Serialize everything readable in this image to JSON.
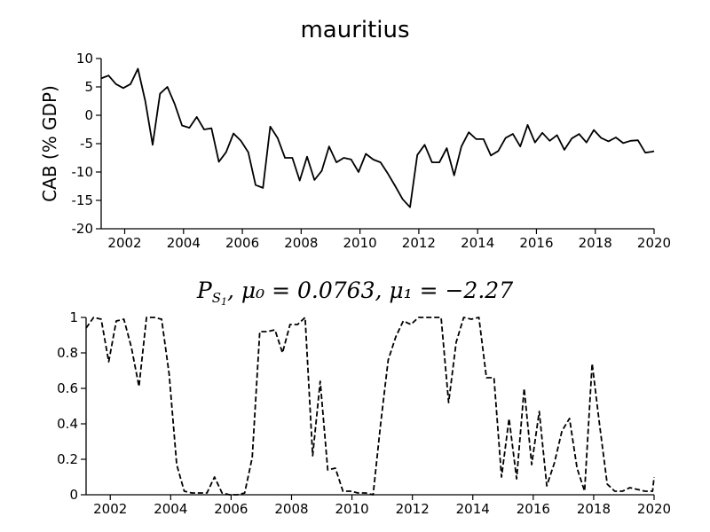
{
  "chart_data": [
    {
      "type": "line",
      "title": "mauritius",
      "ylabel": "CAB (% GDP)",
      "xlabel": "",
      "xlim": [
        2001.2,
        2020.0
      ],
      "ylim": [
        -20,
        10
      ],
      "xticks": [
        2002,
        2004,
        2006,
        2008,
        2010,
        2012,
        2014,
        2016,
        2018,
        2020
      ],
      "yticks": [
        -20,
        -15,
        -10,
        -5,
        0,
        5,
        10
      ],
      "line_style": "solid",
      "line_color": "#000000",
      "grid": false,
      "series": [
        {
          "x": [
            2001.2,
            2001.45,
            2001.7,
            2001.95,
            2002.2,
            2002.45,
            2002.7,
            2002.95,
            2003.2,
            2003.45,
            2003.7,
            2003.95,
            2004.2,
            2004.45,
            2004.7,
            2004.95,
            2005.2,
            2005.45,
            2005.7,
            2005.95,
            2006.2,
            2006.45,
            2006.7,
            2006.95,
            2007.2,
            2007.45,
            2007.7,
            2007.95,
            2008.2,
            2008.45,
            2008.7,
            2008.95,
            2009.2,
            2009.45,
            2009.7,
            2009.95,
            2010.2,
            2010.45,
            2010.7,
            2010.95,
            2011.2,
            2011.45,
            2011.7,
            2011.95,
            2012.2,
            2012.45,
            2012.7,
            2012.95,
            2013.2,
            2013.45,
            2013.7,
            2013.95,
            2014.2,
            2014.45,
            2014.7,
            2014.95,
            2015.2,
            2015.45,
            2015.7,
            2015.95,
            2016.2,
            2016.45,
            2016.7,
            2016.95,
            2017.2,
            2017.45,
            2017.7,
            2017.95,
            2018.2,
            2018.45,
            2018.7,
            2018.95,
            2019.2,
            2019.45,
            2019.7,
            2019.95,
            2020.0
          ],
          "values": [
            6.5,
            7.0,
            5.5,
            4.8,
            5.5,
            8.2,
            2.5,
            -5.2,
            3.8,
            5.0,
            2.0,
            -1.8,
            -2.2,
            -0.3,
            -2.5,
            -2.3,
            -8.2,
            -6.5,
            -3.2,
            -4.5,
            -6.5,
            -12.3,
            -12.8,
            -2.0,
            -4.0,
            -7.5,
            -7.5,
            -11.5,
            -7.3,
            -11.4,
            -9.8,
            -5.5,
            -8.3,
            -7.5,
            -7.8,
            -10.0,
            -6.8,
            -7.8,
            -8.3,
            -10.3,
            -12.5,
            -14.8,
            -16.2,
            -7.0,
            -5.2,
            -8.3,
            -8.3,
            -5.8,
            -10.6,
            -5.5,
            -3.0,
            -4.2,
            -4.2,
            -7.1,
            -6.3,
            -4.0,
            -3.3,
            -5.5,
            -1.7,
            -4.8,
            -3.1,
            -4.5,
            -3.5,
            -6.1,
            -4.1,
            -3.3,
            -4.8,
            -2.6,
            -4.0,
            -4.6,
            -3.9,
            -4.9,
            -4.5,
            -4.4,
            -6.6,
            -6.4,
            -6.3
          ]
        }
      ]
    },
    {
      "type": "line",
      "title_parts": {
        "main": "P",
        "sub": "S",
        "subsub": "1",
        "rest": ", μ₀ = 0.0763, μ₁ = −2.27"
      },
      "ylabel": "",
      "xlabel": "",
      "xlim": [
        2001.2,
        2020.0
      ],
      "ylim": [
        0,
        1
      ],
      "xticks": [
        2002,
        2004,
        2006,
        2008,
        2010,
        2012,
        2014,
        2016,
        2018,
        2020
      ],
      "yticks": [
        0,
        0.2,
        0.4,
        0.6,
        0.8,
        1
      ],
      "ytick_labels": [
        "0",
        "0.2",
        "0.4",
        "0.6",
        "0.8",
        "1"
      ],
      "line_style": "dashed",
      "line_color": "#000000",
      "grid": false,
      "series": [
        {
          "x": [
            2001.2,
            2001.45,
            2001.7,
            2001.95,
            2002.2,
            2002.45,
            2002.7,
            2002.95,
            2003.2,
            2003.45,
            2003.7,
            2003.95,
            2004.2,
            2004.45,
            2004.7,
            2004.95,
            2005.2,
            2005.45,
            2005.7,
            2005.95,
            2006.2,
            2006.45,
            2006.7,
            2006.95,
            2007.2,
            2007.45,
            2007.7,
            2007.95,
            2008.2,
            2008.45,
            2008.7,
            2008.95,
            2009.2,
            2009.45,
            2009.7,
            2009.95,
            2010.2,
            2010.45,
            2010.7,
            2010.95,
            2011.2,
            2011.45,
            2011.7,
            2011.95,
            2012.2,
            2012.45,
            2012.7,
            2012.95,
            2013.2,
            2013.45,
            2013.7,
            2013.95,
            2014.2,
            2014.45,
            2014.7,
            2014.95,
            2015.2,
            2015.45,
            2015.7,
            2015.95,
            2016.2,
            2016.45,
            2016.7,
            2016.95,
            2017.2,
            2017.45,
            2017.7,
            2017.95,
            2018.2,
            2018.45,
            2018.7,
            2018.95,
            2019.2,
            2019.45,
            2019.7,
            2019.95,
            2020.0
          ],
          "values": [
            0.94,
            1.0,
            0.99,
            0.75,
            0.98,
            0.99,
            0.83,
            0.61,
            1.0,
            1.0,
            0.99,
            0.68,
            0.17,
            0.02,
            0.01,
            0.01,
            0.01,
            0.1,
            0.01,
            0.0,
            0.0,
            0.01,
            0.21,
            0.92,
            0.92,
            0.93,
            0.8,
            0.96,
            0.96,
            1.0,
            0.22,
            0.64,
            0.14,
            0.15,
            0.02,
            0.02,
            0.01,
            0.01,
            0.0,
            0.4,
            0.76,
            0.89,
            0.98,
            0.96,
            1.0,
            1.0,
            1.0,
            1.0,
            0.52,
            0.86,
            1.0,
            0.99,
            1.0,
            0.66,
            0.66,
            0.1,
            0.43,
            0.09,
            0.6,
            0.17,
            0.47,
            0.05,
            0.18,
            0.36,
            0.43,
            0.15,
            0.02,
            0.74,
            0.39,
            0.06,
            0.02,
            0.02,
            0.04,
            0.03,
            0.02,
            0.02,
            0.1
          ]
        }
      ]
    }
  ]
}
